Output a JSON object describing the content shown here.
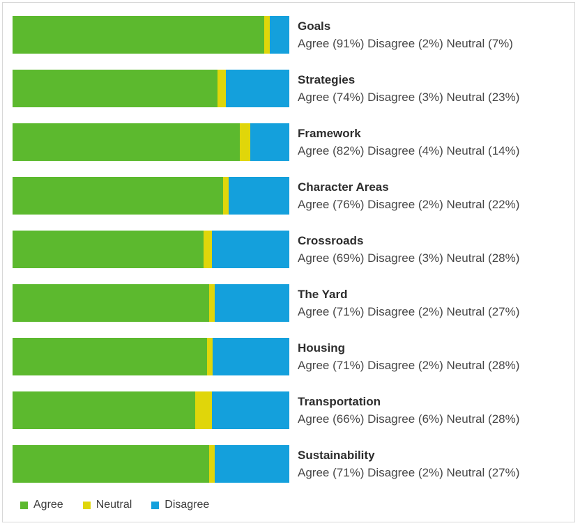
{
  "colors": {
    "agree": "#5cb92e",
    "neutral": "#e0d60a",
    "disagree": "#14a0dc",
    "border": "#d7d7d7",
    "title_text": "#2d2d2d",
    "body_text": "#464646"
  },
  "rows": [
    {
      "title": "Goals",
      "subtitle": "Agree (91%) Disagree (2%) Neutral (7%)",
      "segments": {
        "green": 91,
        "yellow": 2,
        "blue": 7
      }
    },
    {
      "title": "Strategies",
      "subtitle": "Agree (74%) Disagree (3%) Neutral (23%)",
      "segments": {
        "green": 74,
        "yellow": 3,
        "blue": 23
      }
    },
    {
      "title": "Framework",
      "subtitle": "Agree (82%) Disagree (4%) Neutral (14%)",
      "segments": {
        "green": 82,
        "yellow": 4,
        "blue": 14
      }
    },
    {
      "title": "Character Areas",
      "subtitle": "Agree (76%) Disagree (2%) Neutral (22%)",
      "segments": {
        "green": 76,
        "yellow": 2,
        "blue": 22
      }
    },
    {
      "title": "Crossroads",
      "subtitle": "Agree (69%) Disagree (3%) Neutral (28%)",
      "segments": {
        "green": 69,
        "yellow": 3,
        "blue": 28
      }
    },
    {
      "title": "The Yard",
      "subtitle": "Agree (71%) Disagree (2%) Neutral (27%)",
      "segments": {
        "green": 71,
        "yellow": 2,
        "blue": 27
      }
    },
    {
      "title": "Housing",
      "subtitle": "Agree (71%) Disagree (2%) Neutral (28%)",
      "segments": {
        "green": 71,
        "yellow": 2,
        "blue": 28
      }
    },
    {
      "title": "Transportation",
      "subtitle": "Agree (66%) Disagree (6%) Neutral (28%)",
      "segments": {
        "green": 66,
        "yellow": 6,
        "blue": 28
      }
    },
    {
      "title": "Sustainability",
      "subtitle": "Agree (71%) Disagree (2%) Neutral (27%)",
      "segments": {
        "green": 71,
        "yellow": 2,
        "blue": 27
      }
    }
  ],
  "legend": {
    "items": [
      {
        "label": "Agree",
        "color_key": "agree"
      },
      {
        "label": "Neutral",
        "color_key": "neutral"
      },
      {
        "label": "Disagree",
        "color_key": "disagree"
      }
    ]
  },
  "chart_data": {
    "type": "bar",
    "orientation": "horizontal",
    "stacked": true,
    "categories": [
      "Goals",
      "Strategies",
      "Framework",
      "Character Areas",
      "Crossroads",
      "The Yard",
      "Housing",
      "Transportation",
      "Sustainability"
    ],
    "series": [
      {
        "name": "Agree",
        "color": "#5cb92e",
        "values": [
          91,
          74,
          82,
          76,
          69,
          71,
          71,
          66,
          71
        ]
      },
      {
        "name": "Neutral",
        "color": "#e0d60a",
        "values": [
          7,
          23,
          14,
          22,
          28,
          27,
          28,
          28,
          27
        ]
      },
      {
        "name": "Disagree",
        "color": "#14a0dc",
        "values": [
          2,
          3,
          4,
          2,
          3,
          2,
          2,
          6,
          2
        ]
      }
    ],
    "xlim": [
      0,
      100
    ],
    "grid": false,
    "legend_position": "bottom",
    "data_labels": "text right of each bar: category name bold, then Agree/Disagree/Neutral percentages",
    "rendered_segment_order_note": "each bar renders green (Agree %), then thin yellow segment whose width equals the Disagree %, then blue segment whose width equals the Neutral %"
  }
}
